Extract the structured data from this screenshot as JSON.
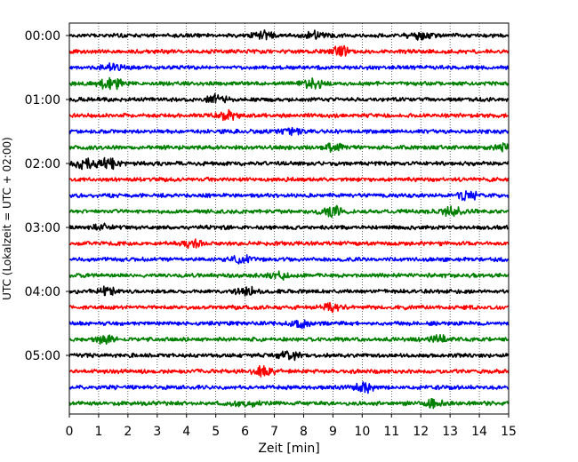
{
  "chart_data": {
    "type": "line",
    "title": "",
    "xlabel": "Zeit  [min]",
    "ylabel": "UTC (Lokalzeit = UTC + 02:00)",
    "xlim": [
      0,
      15
    ],
    "x_ticks": [
      "0",
      "1",
      "2",
      "3",
      "4",
      "5",
      "6",
      "7",
      "8",
      "9",
      "10",
      "11",
      "12",
      "13",
      "14",
      "15"
    ],
    "y_tick_labels": [
      "00:00",
      "01:00",
      "02:00",
      "03:00",
      "04:00",
      "05:00"
    ],
    "trace_interval_minutes": 15,
    "trace_count": 24,
    "color_cycle": [
      "#000000",
      "#ff0000",
      "#0000ff",
      "#008000"
    ],
    "vertical_grid": "dotted",
    "legend": "none",
    "series": [
      {
        "start": "00:00",
        "events": [
          {
            "x": 6.6,
            "amp": 1.1
          },
          {
            "x": 8.4,
            "amp": 1.3
          },
          {
            "x": 12.0,
            "amp": 1.2
          }
        ]
      },
      {
        "start": "00:15",
        "events": [
          {
            "x": 9.3,
            "amp": 1.6
          }
        ]
      },
      {
        "start": "00:30",
        "events": [
          {
            "x": 1.5,
            "amp": 1.1
          }
        ]
      },
      {
        "start": "00:45",
        "events": [
          {
            "x": 1.4,
            "amp": 2.0
          },
          {
            "x": 8.3,
            "amp": 1.8
          }
        ]
      },
      {
        "start": "01:00",
        "events": [
          {
            "x": 5.0,
            "amp": 1.4
          }
        ]
      },
      {
        "start": "01:15",
        "events": [
          {
            "x": 5.3,
            "amp": 1.6
          }
        ]
      },
      {
        "start": "01:30",
        "events": [
          {
            "x": 7.5,
            "amp": 1.1
          }
        ]
      },
      {
        "start": "01:45",
        "events": [
          {
            "x": 9.0,
            "amp": 1.1
          },
          {
            "x": 14.8,
            "amp": 1.2
          }
        ]
      },
      {
        "start": "02:00",
        "events": [
          {
            "x": 0.5,
            "amp": 2.0
          },
          {
            "x": 1.3,
            "amp": 1.7
          }
        ]
      },
      {
        "start": "02:15",
        "events": []
      },
      {
        "start": "02:30",
        "events": [
          {
            "x": 13.6,
            "amp": 1.3
          }
        ]
      },
      {
        "start": "02:45",
        "events": [
          {
            "x": 9.0,
            "amp": 1.8
          },
          {
            "x": 13.1,
            "amp": 1.3
          }
        ]
      },
      {
        "start": "03:00",
        "events": [
          {
            "x": 1.1,
            "amp": 1.0
          }
        ]
      },
      {
        "start": "03:15",
        "events": [
          {
            "x": 4.2,
            "amp": 1.1
          }
        ]
      },
      {
        "start": "03:30",
        "events": [
          {
            "x": 5.9,
            "amp": 1.4
          }
        ]
      },
      {
        "start": "03:45",
        "events": [
          {
            "x": 7.1,
            "amp": 1.1
          }
        ]
      },
      {
        "start": "04:00",
        "events": [
          {
            "x": 1.3,
            "amp": 1.1
          },
          {
            "x": 6.1,
            "amp": 1.2
          }
        ]
      },
      {
        "start": "04:15",
        "events": [
          {
            "x": 8.9,
            "amp": 1.2
          }
        ]
      },
      {
        "start": "04:30",
        "events": [
          {
            "x": 7.9,
            "amp": 1.2
          }
        ]
      },
      {
        "start": "04:45",
        "events": [
          {
            "x": 1.2,
            "amp": 1.1
          },
          {
            "x": 12.6,
            "amp": 1.1
          }
        ]
      },
      {
        "start": "05:00",
        "events": [
          {
            "x": 7.5,
            "amp": 1.3
          }
        ]
      },
      {
        "start": "05:15",
        "events": [
          {
            "x": 6.6,
            "amp": 1.3
          }
        ]
      },
      {
        "start": "05:30",
        "events": [
          {
            "x": 10.1,
            "amp": 1.4
          }
        ]
      },
      {
        "start": "05:45",
        "events": [
          {
            "x": 6.0,
            "amp": 1.3
          },
          {
            "x": 12.5,
            "amp": 1.2
          }
        ]
      }
    ]
  }
}
